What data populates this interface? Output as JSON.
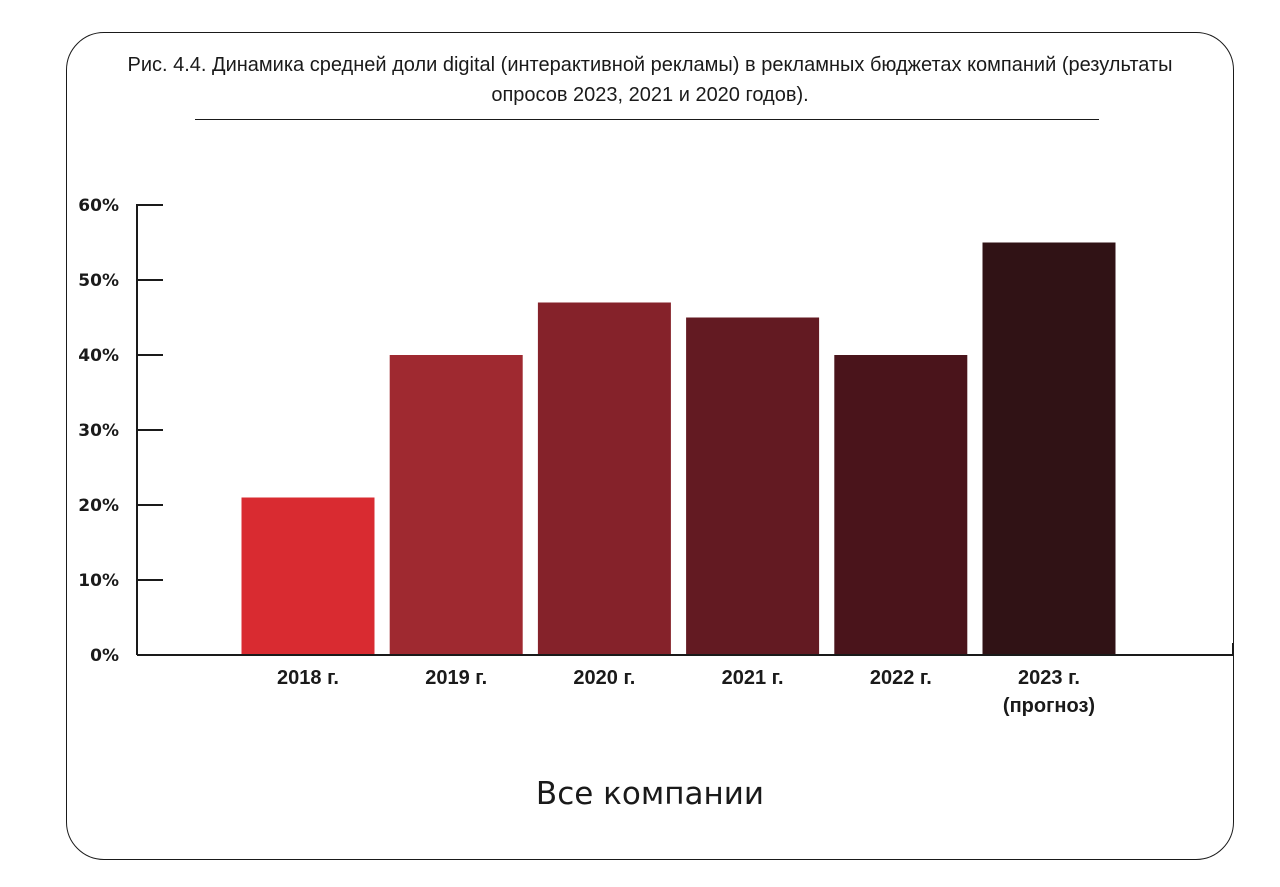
{
  "chart_data": {
    "type": "bar",
    "title": "Рис. 4.4. Динамика средней доли digital (интерактивной рекламы) в рекламных бюджетах компаний (результаты опросов 2023, 2021 и 2020 годов).",
    "xlabel": "Все компании",
    "ylabel": "",
    "categories": [
      [
        "2018 г."
      ],
      [
        "2019 г."
      ],
      [
        "2020 г."
      ],
      [
        "2021 г."
      ],
      [
        "2022 г."
      ],
      [
        "2023 г.",
        "(прогноз)"
      ]
    ],
    "values": [
      21,
      40,
      47,
      45,
      40,
      55
    ],
    "bar_colors": [
      "#d92b31",
      "#9f2930",
      "#85222a",
      "#631a22",
      "#4a141b",
      "#301215"
    ],
    "y_ticks": [
      0,
      10,
      20,
      30,
      40,
      50,
      60
    ],
    "y_tick_format": "%",
    "ylim": [
      0,
      60
    ],
    "grid": false,
    "legend": "none"
  }
}
